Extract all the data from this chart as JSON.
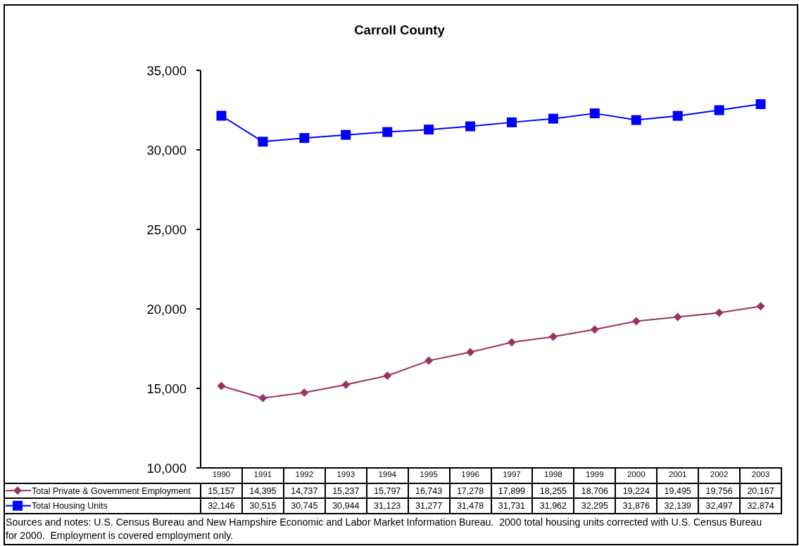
{
  "chart_data": {
    "type": "line",
    "title": "Carroll County",
    "categories": [
      "1990",
      "1991",
      "1992",
      "1993",
      "1994",
      "1995",
      "1996",
      "1997",
      "1998",
      "1999",
      "2000",
      "2001",
      "2002",
      "2003"
    ],
    "series": [
      {
        "name": "Total Private & Government Employment",
        "color": "#993366",
        "marker": "diamond",
        "values": [
          15157,
          14395,
          14737,
          15237,
          15797,
          16743,
          17278,
          17899,
          18255,
          18706,
          19224,
          19495,
          19756,
          20167
        ],
        "value_labels": [
          "15,157",
          "14,395",
          "14,737",
          "15,237",
          "15,797",
          "16,743",
          "17,278",
          "17,899",
          "18,255",
          "18,706",
          "19,224",
          "19,495",
          "19,756",
          "20,167"
        ]
      },
      {
        "name": "Total Housing Units",
        "color": "#0000ff",
        "marker": "square",
        "values": [
          32146,
          30515,
          30745,
          30944,
          31123,
          31277,
          31478,
          31731,
          31962,
          32295,
          31876,
          32139,
          32497,
          32874
        ],
        "value_labels": [
          "32,146",
          "30,515",
          "30,745",
          "30,944",
          "31,123",
          "31,277",
          "31,478",
          "31,731",
          "31,962",
          "32,295",
          "31,876",
          "32,139",
          "32,497",
          "32,874"
        ]
      }
    ],
    "ylim": [
      10000,
      35000
    ],
    "yticks": [
      {
        "value": 10000,
        "label": "10,000"
      },
      {
        "value": 15000,
        "label": "15,000"
      },
      {
        "value": 20000,
        "label": "20,000"
      },
      {
        "value": 25000,
        "label": "25,000"
      },
      {
        "value": 30000,
        "label": "30,000"
      },
      {
        "value": 35000,
        "label": "35,000"
      }
    ],
    "legend": "bottom",
    "line_style": "solid",
    "annotations": [
      "Sources and notes: U.S. Census Bureau and New Hampshire Economic and Labor Market Information Bureau.  2000 total housing units corrected with U.S. Census Bureau for 2000.  Employment is covered employment only."
    ]
  }
}
